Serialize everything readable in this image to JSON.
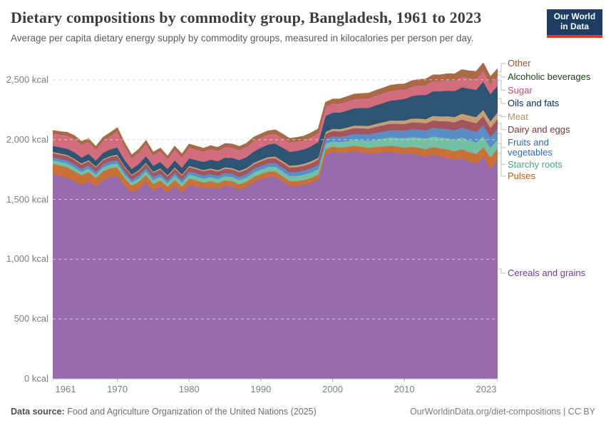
{
  "header": {
    "title": "Dietary compositions by commodity group, Bangladesh, 1961 to 2023",
    "subtitle": "Average per capita dietary energy supply by commodity groups, measured in kilocalories per person per day.",
    "logo_line1": "Our World",
    "logo_line2": "in Data"
  },
  "footer": {
    "datasource_label": "Data source:",
    "datasource": "Food and Agriculture Organization of the United Nations (2025)",
    "link": "OurWorldinData.org/diet-compositions | CC BY"
  },
  "chart_data": {
    "type": "area",
    "stacked": true,
    "title": "Dietary compositions by commodity group, Bangladesh, 1961 to 2023",
    "xlabel": "",
    "ylabel": "",
    "grid": true,
    "legend_position": "right",
    "ylim": [
      0,
      2500
    ],
    "y_tick_values": [
      0,
      500,
      1000,
      1500,
      2000,
      2500
    ],
    "y_tick_labels": [
      "0 kcal",
      "500 kcal",
      "1,000 kcal",
      "1,500 kcal",
      "2,000 kcal",
      "2,500 kcal"
    ],
    "x_ticks": [
      1961,
      1970,
      1980,
      1990,
      2000,
      2010,
      2023
    ],
    "x": [
      1961,
      1962,
      1963,
      1964,
      1965,
      1966,
      1967,
      1968,
      1969,
      1970,
      1971,
      1972,
      1973,
      1974,
      1975,
      1976,
      1977,
      1978,
      1979,
      1980,
      1981,
      1982,
      1983,
      1984,
      1985,
      1986,
      1987,
      1988,
      1989,
      1990,
      1991,
      1992,
      1993,
      1994,
      1995,
      1996,
      1997,
      1998,
      1999,
      2000,
      2001,
      2002,
      2003,
      2004,
      2005,
      2006,
      2007,
      2008,
      2009,
      2010,
      2011,
      2012,
      2013,
      2014,
      2015,
      2016,
      2017,
      2018,
      2019,
      2020,
      2021,
      2022,
      2023
    ],
    "unit": "kcal per person per day",
    "series": [
      {
        "name": "Cereals and grains",
        "color": "#976bab",
        "label_color": "#6d3e91",
        "values": [
          1715,
          1700,
          1685,
          1655,
          1625,
          1655,
          1610,
          1665,
          1690,
          1700,
          1620,
          1560,
          1590,
          1645,
          1575,
          1610,
          1560,
          1615,
          1560,
          1625,
          1610,
          1595,
          1605,
          1590,
          1615,
          1610,
          1585,
          1605,
          1645,
          1670,
          1690,
          1695,
          1655,
          1615,
          1615,
          1625,
          1640,
          1670,
          1880,
          1900,
          1890,
          1895,
          1905,
          1895,
          1885,
          1890,
          1895,
          1900,
          1890,
          1880,
          1885,
          1875,
          1860,
          1875,
          1860,
          1850,
          1830,
          1845,
          1820,
          1800,
          1860,
          1760,
          1840
        ]
      },
      {
        "name": "Pulses",
        "color": "#ca7139",
        "label_color": "#be5915",
        "values": [
          85,
          86,
          88,
          84,
          80,
          76,
          72,
          74,
          72,
          70,
          64,
          58,
          60,
          62,
          56,
          52,
          48,
          52,
          50,
          52,
          50,
          48,
          50,
          48,
          46,
          45,
          44,
          45,
          46,
          45,
          44,
          42,
          42,
          40,
          40,
          40,
          42,
          40,
          42,
          44,
          45,
          46,
          47,
          48,
          48,
          50,
          50,
          52,
          54,
          55,
          57,
          60,
          62,
          65,
          68,
          71,
          74,
          77,
          80,
          82,
          80,
          95,
          90
        ]
      },
      {
        "name": "Starchy roots",
        "color": "#74c0a4",
        "label_color": "#4aa181",
        "values": [
          30,
          30,
          31,
          32,
          28,
          30,
          28,
          30,
          32,
          34,
          30,
          27,
          31,
          34,
          34,
          32,
          30,
          34,
          32,
          34,
          34,
          33,
          34,
          34,
          35,
          35,
          35,
          36,
          37,
          38,
          39,
          40,
          41,
          42,
          43,
          44,
          45,
          45,
          45,
          45,
          47,
          50,
          52,
          55,
          58,
          62,
          66,
          70,
          74,
          78,
          81,
          84,
          87,
          90,
          92,
          94,
          96,
          98,
          98,
          96,
          92,
          80,
          72
        ]
      },
      {
        "name": "Fruits and vegetables",
        "color": "#5b8ec9",
        "label_color": "#286bbb",
        "values": [
          25,
          25,
          26,
          26,
          25,
          25,
          25,
          26,
          26,
          27,
          25,
          24,
          25,
          26,
          26,
          25,
          25,
          26,
          26,
          27,
          27,
          27,
          27,
          28,
          28,
          28,
          29,
          29,
          30,
          30,
          31,
          31,
          32,
          33,
          34,
          35,
          36,
          37,
          39,
          41,
          43,
          45,
          47,
          50,
          53,
          56,
          58,
          60,
          62,
          64,
          66,
          68,
          70,
          72,
          74,
          77,
          80,
          83,
          86,
          89,
          92,
          90,
          96
        ]
      },
      {
        "name": "Dairy and eggs",
        "color": "#a4545c",
        "label_color": "#883039",
        "values": [
          35,
          35,
          35,
          36,
          35,
          35,
          34,
          35,
          35,
          36,
          34,
          32,
          33,
          34,
          33,
          33,
          32,
          33,
          33,
          34,
          34,
          34,
          34,
          35,
          35,
          35,
          36,
          36,
          37,
          37,
          38,
          38,
          39,
          39,
          40,
          40,
          41,
          42,
          43,
          44,
          45,
          46,
          47,
          48,
          49,
          50,
          52,
          53,
          54,
          55,
          56,
          58,
          59,
          61,
          62,
          64,
          66,
          68,
          70,
          72,
          74,
          76,
          78
        ]
      },
      {
        "name": "Meat",
        "color": "#c4a076",
        "label_color": "#bc8e5a",
        "values": [
          10,
          10,
          10,
          10,
          10,
          10,
          10,
          10,
          10,
          11,
          10,
          9,
          10,
          10,
          10,
          10,
          10,
          11,
          11,
          11,
          11,
          11,
          12,
          12,
          12,
          12,
          13,
          13,
          13,
          14,
          14,
          15,
          15,
          16,
          16,
          17,
          17,
          18,
          18,
          19,
          20,
          21,
          22,
          23,
          24,
          25,
          26,
          27,
          28,
          30,
          32,
          34,
          36,
          38,
          40,
          42,
          45,
          48,
          50,
          52,
          54,
          56,
          56
        ]
      },
      {
        "name": "Oils and fats",
        "color": "#2e5474",
        "label_color": "#00295b",
        "values": [
          50,
          52,
          52,
          54,
          50,
          52,
          48,
          52,
          55,
          58,
          52,
          46,
          50,
          54,
          50,
          54,
          52,
          58,
          56,
          62,
          65,
          68,
          72,
          75,
          80,
          84,
          88,
          92,
          95,
          100,
          104,
          108,
          112,
          115,
          119,
          120,
          125,
          130,
          132,
          135,
          138,
          141,
          144,
          147,
          150,
          155,
          160,
          165,
          172,
          180,
          188,
          195,
          201,
          206,
          210,
          214,
          218,
          221,
          224,
          228,
          234,
          226,
          222
        ]
      },
      {
        "name": "Sugar",
        "color": "#d26d7d",
        "label_color": "#c15065",
        "values": [
          105,
          108,
          112,
          115,
          110,
          104,
          95,
          105,
          116,
          140,
          120,
          95,
          100,
          106,
          90,
          92,
          85,
          95,
          90,
          95,
          92,
          90,
          92,
          90,
          92,
          90,
          88,
          88,
          90,
          88,
          86,
          85,
          84,
          82,
          82,
          80,
          80,
          78,
          80,
          78,
          78,
          80,
          80,
          82,
          82,
          84,
          84,
          85,
          86,
          80,
          82,
          84,
          85,
          86,
          86,
          88,
          88,
          90,
          92,
          94,
          96,
          88,
          86
        ]
      },
      {
        "name": "Alcoholic beverages",
        "color": "#2f5d2a",
        "label_color": "#18470f",
        "values": [
          1,
          1,
          1,
          1,
          1,
          1,
          1,
          1,
          1,
          1,
          1,
          1,
          1,
          1,
          1,
          1,
          1,
          1,
          1,
          1,
          1,
          1,
          1,
          1,
          1,
          1,
          1,
          1,
          1,
          1,
          1,
          1,
          1,
          1,
          1,
          1,
          1,
          1,
          1,
          1,
          1,
          1,
          1,
          1,
          1,
          1,
          1,
          1,
          1,
          1,
          1,
          1,
          1,
          1,
          1,
          1,
          1,
          1,
          1,
          1,
          1,
          1,
          1
        ]
      },
      {
        "name": "Other",
        "color": "#ab6a46",
        "label_color": "#9a5129",
        "values": [
          20,
          20,
          21,
          21,
          20,
          20,
          19,
          20,
          21,
          22,
          20,
          19,
          20,
          21,
          20,
          20,
          19,
          21,
          20,
          21,
          21,
          21,
          22,
          22,
          23,
          23,
          24,
          24,
          25,
          25,
          26,
          26,
          27,
          27,
          28,
          28,
          29,
          30,
          31,
          32,
          33,
          34,
          35,
          36,
          37,
          38,
          39,
          40,
          41,
          42,
          43,
          44,
          46,
          47,
          48,
          50,
          51,
          53,
          54,
          56,
          58,
          54,
          52
        ]
      }
    ],
    "legend_order_top_to_bottom": [
      "Other",
      "Alcoholic beverages",
      "Sugar",
      "Oils and fats",
      "Meat",
      "Dairy and eggs",
      "Fruits and vegetables",
      "Starchy roots",
      "Pulses",
      "Cereals and grains"
    ]
  }
}
